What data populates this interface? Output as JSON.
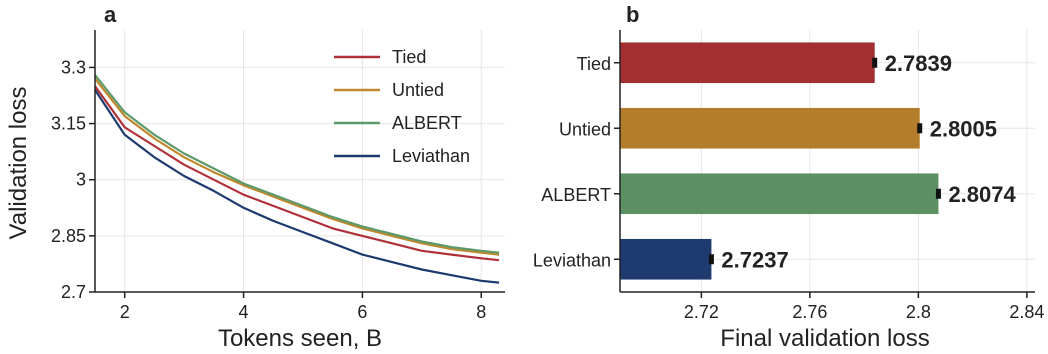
{
  "chart_data": [
    {
      "panel": "a",
      "type": "line",
      "xlabel": "Tokens seen, B",
      "ylabel": "Validation loss",
      "xlim": [
        1.5,
        8.4
      ],
      "ylim": [
        2.7,
        3.4
      ],
      "xticks": [
        "2",
        "4",
        "6",
        "8"
      ],
      "yticks": [
        "2.7",
        "2.85",
        "3",
        "3.15",
        "3.3"
      ],
      "grid": true,
      "legend_position": "top-right",
      "series": [
        {
          "name": "Tied",
          "color": "#b0303a",
          "x": [
            1.5,
            2.0,
            2.5,
            3.0,
            3.5,
            4.0,
            4.5,
            5.0,
            5.5,
            6.0,
            6.5,
            7.0,
            7.5,
            8.0,
            8.3
          ],
          "y": [
            3.25,
            3.14,
            3.09,
            3.04,
            3.0,
            2.96,
            2.93,
            2.9,
            2.87,
            2.85,
            2.83,
            2.81,
            2.8,
            2.79,
            2.785
          ]
        },
        {
          "name": "Untied",
          "color": "#c0872c",
          "x": [
            1.5,
            2.0,
            2.5,
            3.0,
            3.5,
            4.0,
            4.5,
            5.0,
            5.5,
            6.0,
            6.5,
            7.0,
            7.5,
            8.0,
            8.3
          ],
          "y": [
            3.27,
            3.17,
            3.11,
            3.06,
            3.02,
            2.985,
            2.955,
            2.925,
            2.895,
            2.87,
            2.85,
            2.83,
            2.815,
            2.805,
            2.8
          ]
        },
        {
          "name": "ALBERT",
          "color": "#5c9a6a",
          "x": [
            1.5,
            2.0,
            2.5,
            3.0,
            3.5,
            4.0,
            4.5,
            5.0,
            5.5,
            6.0,
            6.5,
            7.0,
            7.5,
            8.0,
            8.3
          ],
          "y": [
            3.28,
            3.18,
            3.12,
            3.07,
            3.03,
            2.99,
            2.96,
            2.93,
            2.9,
            2.875,
            2.855,
            2.835,
            2.82,
            2.81,
            2.805
          ]
        },
        {
          "name": "Leviathan",
          "color": "#1c3a6e",
          "x": [
            1.5,
            2.0,
            2.5,
            3.0,
            3.5,
            4.0,
            4.5,
            5.0,
            5.5,
            6.0,
            6.5,
            7.0,
            7.5,
            8.0,
            8.3
          ],
          "y": [
            3.24,
            3.12,
            3.06,
            3.01,
            2.97,
            2.925,
            2.89,
            2.86,
            2.83,
            2.8,
            2.78,
            2.76,
            2.745,
            2.73,
            2.725
          ]
        }
      ]
    },
    {
      "panel": "b",
      "type": "bar",
      "orientation": "horizontal",
      "xlabel": "Final validation loss",
      "xlim": [
        2.69,
        2.843
      ],
      "xticks": [
        "2.72",
        "2.76",
        "2.8",
        "2.84"
      ],
      "grid": true,
      "categories": [
        "Tied",
        "Untied",
        "ALBERT",
        "Leviathan"
      ],
      "values": [
        2.7839,
        2.8005,
        2.8074,
        2.7237
      ],
      "value_labels": [
        "2.7839",
        "2.8005",
        "2.8074",
        "2.7237"
      ],
      "colors": [
        "#a42f32",
        "#b47d2c",
        "#5c8f62",
        "#1f3a6e"
      ],
      "error_bars": true
    }
  ]
}
